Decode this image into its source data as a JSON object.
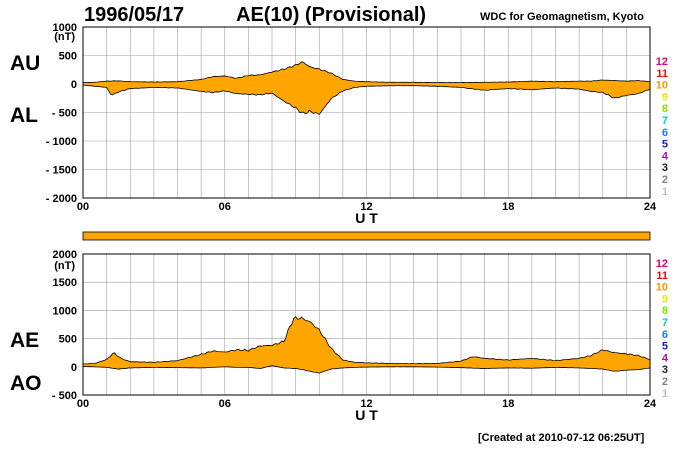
{
  "header": {
    "date": "1996/05/17",
    "title": "AE(10) (Provisional)",
    "source": "WDC for Geomagnetism, Kyoto",
    "created": "[Created at 2010-07-12 06:25UT]"
  },
  "colors": {
    "fill": "#ffa500",
    "grid": "#a0a0a0",
    "line": "#000000"
  },
  "station_scale": {
    "labels": [
      "12",
      "11",
      "10",
      "9",
      "8",
      "7",
      "6",
      "5",
      "4",
      "3",
      "2",
      "1"
    ],
    "colors": [
      "#e0006e",
      "#e01010",
      "#ff9900",
      "#e8e800",
      "#88e000",
      "#00d0d0",
      "#1e78ff",
      "#2020c0",
      "#c000c0",
      "#202020",
      "#808080",
      "#c0c0c0"
    ]
  },
  "chart_data": [
    {
      "type": "area",
      "panel": "AU/AL",
      "upper_label": "AU",
      "lower_label": "AL",
      "unit": "(nT)",
      "xlabel": "U T",
      "xlim": [
        0,
        24
      ],
      "ylim": [
        -2000,
        1000
      ],
      "yticks": [
        1000,
        500,
        0,
        -500,
        -1000,
        -1500,
        -2000
      ],
      "ytick_labels": [
        "1000",
        "500",
        "0",
        "- 500",
        "- 1000",
        "- 1500",
        "- 2000"
      ],
      "xticks": [
        0,
        6,
        12,
        18,
        24
      ],
      "xtick_labels": [
        "00",
        "06",
        "12",
        "18",
        "24"
      ],
      "series": [
        {
          "name": "AU",
          "x": [
            0,
            0.5,
            1,
            1.5,
            2,
            3,
            4,
            5,
            5.5,
            6,
            6.5,
            7,
            7.5,
            8,
            8.5,
            9,
            9.3,
            9.6,
            10,
            10.5,
            11,
            11.5,
            12,
            13,
            14,
            15,
            16,
            17,
            18,
            19,
            20,
            21,
            21.5,
            22,
            22.5,
            23,
            23.5,
            24
          ],
          "y": [
            25,
            30,
            50,
            55,
            40,
            35,
            40,
            80,
            130,
            140,
            100,
            150,
            160,
            210,
            260,
            330,
            390,
            300,
            260,
            190,
            80,
            50,
            40,
            30,
            30,
            25,
            25,
            30,
            35,
            50,
            40,
            50,
            50,
            70,
            60,
            50,
            60,
            40
          ]
        },
        {
          "name": "AL",
          "x": [
            0,
            0.5,
            1,
            1.2,
            1.5,
            2,
            3,
            4,
            5,
            5.5,
            6,
            6.5,
            7,
            7.5,
            8,
            8.5,
            9,
            9.3,
            9.6,
            10,
            10.5,
            11,
            11.5,
            12,
            13,
            14,
            15,
            16,
            17,
            18,
            19,
            20,
            21,
            21.5,
            22,
            22.5,
            23,
            23.5,
            24
          ],
          "y": [
            -20,
            -40,
            -60,
            -200,
            -140,
            -80,
            -60,
            -70,
            -130,
            -150,
            -120,
            -170,
            -180,
            -190,
            -160,
            -300,
            -420,
            -520,
            -480,
            -530,
            -260,
            -120,
            -60,
            -40,
            -30,
            -30,
            -40,
            -60,
            -110,
            -80,
            -100,
            -70,
            -90,
            -130,
            -150,
            -250,
            -200,
            -170,
            -90
          ]
        }
      ]
    },
    {
      "type": "area",
      "panel": "AE/AO",
      "upper_label": "AE",
      "lower_label": "AO",
      "unit": "(nT)",
      "xlabel": "U T",
      "xlim": [
        0,
        24
      ],
      "ylim": [
        -500,
        2000
      ],
      "yticks": [
        2000,
        1500,
        1000,
        500,
        0,
        -500
      ],
      "ytick_labels": [
        "2000",
        "1500",
        "1000",
        "500",
        "0",
        "- 500"
      ],
      "xticks": [
        0,
        6,
        12,
        18,
        24
      ],
      "xtick_labels": [
        "00",
        "06",
        "12",
        "18",
        "24"
      ],
      "series": [
        {
          "name": "AE",
          "x": [
            0,
            0.5,
            1,
            1.3,
            1.6,
            2,
            3,
            4,
            5,
            5.5,
            6,
            6.5,
            7,
            7.5,
            8,
            8.5,
            8.9,
            9.2,
            9.6,
            10,
            10.5,
            11,
            11.5,
            12,
            13,
            14,
            15,
            16,
            16.5,
            17,
            18,
            19,
            20,
            21,
            21.5,
            22,
            22.5,
            23,
            23.5,
            24
          ],
          "y": [
            50,
            60,
            130,
            250,
            150,
            90,
            80,
            110,
            220,
            280,
            260,
            300,
            290,
            370,
            380,
            450,
            850,
            870,
            800,
            650,
            330,
            120,
            80,
            70,
            60,
            55,
            60,
            100,
            180,
            150,
            120,
            150,
            110,
            150,
            200,
            300,
            250,
            230,
            200,
            130
          ]
        },
        {
          "name": "AO",
          "x": [
            0,
            0.5,
            1,
            1.5,
            2,
            3,
            4,
            5,
            5.5,
            6,
            6.5,
            7,
            7.5,
            8,
            8.5,
            9,
            9.3,
            9.6,
            10,
            10.5,
            11,
            11.5,
            12,
            13,
            14,
            15,
            16,
            17,
            18,
            19,
            20,
            21,
            22,
            22.5,
            23,
            23.5,
            24
          ],
          "y": [
            5,
            0,
            -10,
            -40,
            -20,
            -10,
            -15,
            -20,
            -10,
            0,
            -10,
            -10,
            -30,
            20,
            -20,
            -30,
            -50,
            -80,
            -110,
            -40,
            -20,
            -10,
            -5,
            0,
            0,
            -5,
            -15,
            -30,
            -20,
            -25,
            -10,
            -20,
            -40,
            -80,
            -60,
            -50,
            -20
          ]
        }
      ]
    }
  ]
}
